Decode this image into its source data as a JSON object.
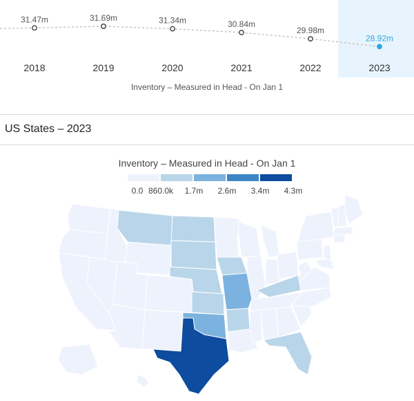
{
  "trend": {
    "points": [
      {
        "year": "2018",
        "value": 31.47,
        "label": "31.47m"
      },
      {
        "year": "2019",
        "value": 31.69,
        "label": "31.69m"
      },
      {
        "year": "2020",
        "value": 31.34,
        "label": "31.34m"
      },
      {
        "year": "2021",
        "value": 30.84,
        "label": "30.84m"
      },
      {
        "year": "2022",
        "value": 29.98,
        "label": "29.98m"
      },
      {
        "year": "2023",
        "value": 28.92,
        "label": "28.92m"
      }
    ],
    "selected_year": "2023",
    "caption": "Inventory – Measured in Head - On Jan 1",
    "line_color": "#bdbdbd",
    "accent_color": "#29a8e0"
  },
  "map_section": {
    "title": "US States – 2023",
    "legend_title": "Inventory – Measured in Head - On Jan 1",
    "legend_ticks": [
      "0.0",
      "860.0k",
      "1.7m",
      "2.6m",
      "3.4m",
      "4.3m"
    ],
    "legend_colors": [
      "#eef2fc",
      "#b9d5e9",
      "#7cb2df",
      "#3d86c6",
      "#0d4c9e"
    ],
    "state_colors": {
      "TX": "#0d4c9e",
      "MO": "#7cb2df",
      "OK": "#7cb2df",
      "KS": "#b9d5e9",
      "NE": "#b9d5e9",
      "SD": "#b9d5e9",
      "ND": "#b9d5e9",
      "MT": "#b9d5e9",
      "IA": "#b9d5e9",
      "AR": "#b9d5e9",
      "KY": "#b9d5e9",
      "FL": "#b9d5e9",
      "default": "#eef2fc"
    }
  }
}
